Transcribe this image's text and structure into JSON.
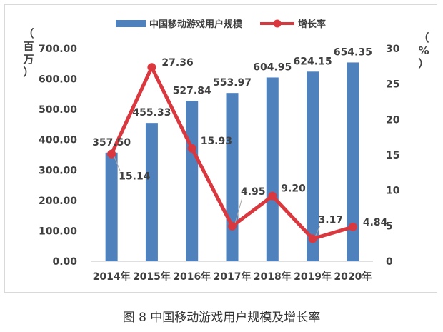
{
  "chart_data": {
    "type": "bar+line",
    "categories": [
      "2014年",
      "2015年",
      "2016年",
      "2017年",
      "2018年",
      "2019年",
      "2020年"
    ],
    "series": [
      {
        "name": "中国移动游戏用户规模",
        "type": "bar",
        "axis": "left",
        "values": [
          357.5,
          455.33,
          527.84,
          553.97,
          604.95,
          624.15,
          654.35
        ],
        "labels": [
          "357.50",
          "455.33",
          "527.84",
          "553.97",
          "604.95",
          "624.15",
          "654.35"
        ],
        "color": "#4f81bd"
      },
      {
        "name": "增长率",
        "type": "line",
        "axis": "right",
        "values": [
          15.14,
          27.36,
          15.93,
          4.95,
          9.2,
          3.17,
          4.84
        ],
        "labels": [
          "15.14",
          "27.36",
          "15.93",
          "4.95",
          "9.20",
          "3.17",
          "4.84"
        ],
        "color": "#d9383f"
      }
    ],
    "left_axis": {
      "label": "（百万）",
      "ylim": [
        0,
        700
      ],
      "ticks": [
        "0.00",
        "100.00",
        "200.00",
        "300.00",
        "400.00",
        "500.00",
        "600.00",
        "700.00"
      ]
    },
    "right_axis": {
      "label": "（%）",
      "ylim": [
        0,
        30
      ],
      "ticks": [
        "0",
        "5",
        "10",
        "15",
        "20",
        "25",
        "30"
      ]
    },
    "legend_position": "top",
    "grid": false
  },
  "caption": "图 8  中国移动游戏用户规模及增长率"
}
